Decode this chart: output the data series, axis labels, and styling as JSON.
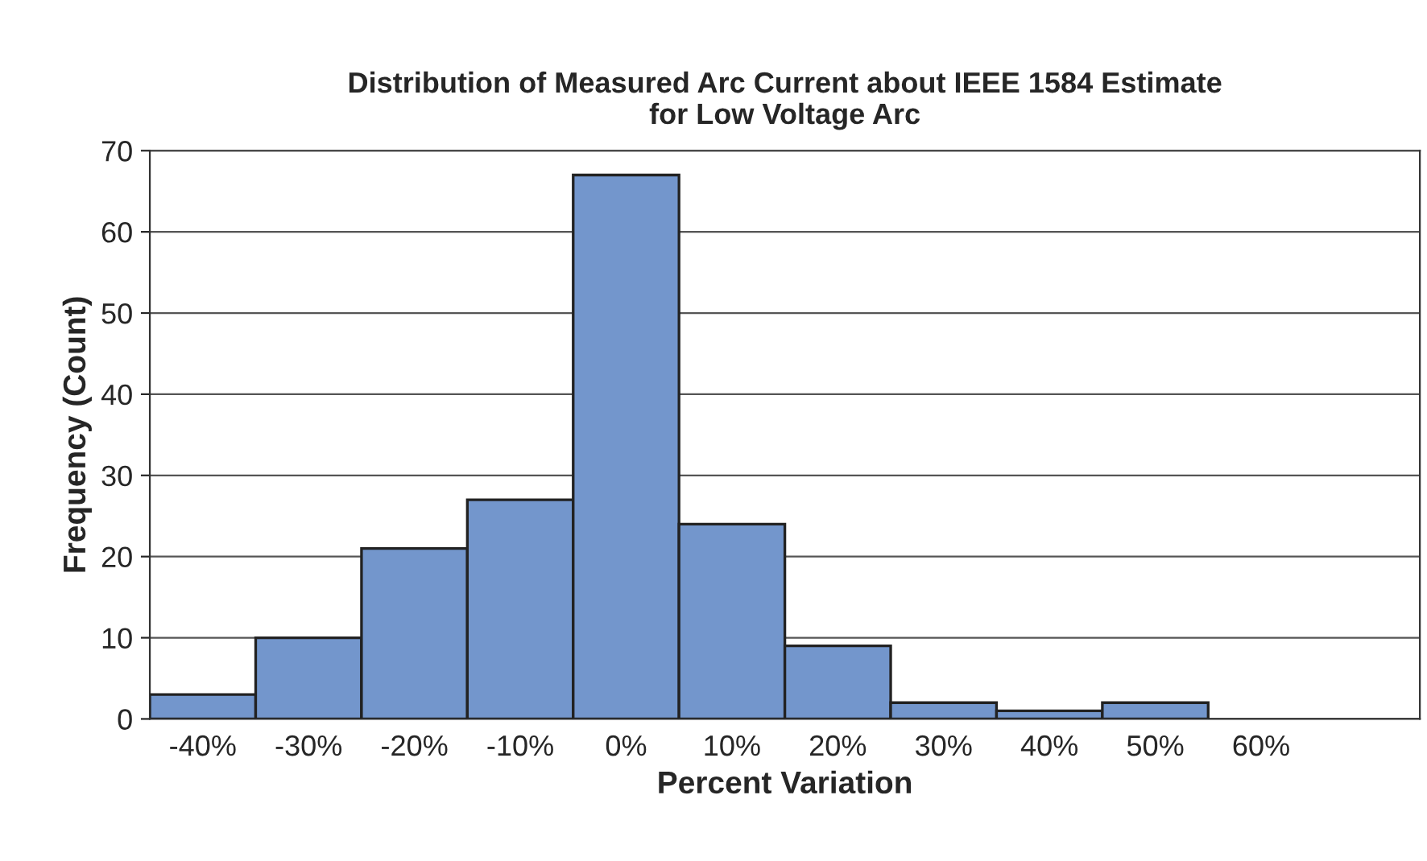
{
  "chart_data": {
    "type": "bar",
    "title": "Distribution of Measured Arc Current about IEEE 1584 Estimate\nfor Low Voltage Arc",
    "xlabel": "Percent Variation",
    "ylabel": "Frequency (Count)",
    "categories": [
      "-40%",
      "-30%",
      "-20%",
      "-10%",
      "0%",
      "10%",
      "20%",
      "30%",
      "40%",
      "50%",
      "60%",
      null
    ],
    "values": [
      3,
      10,
      21,
      27,
      67,
      24,
      9,
      2,
      1,
      2,
      null,
      null
    ],
    "color": "#7396cc",
    "ylim": [
      0,
      70
    ],
    "yticks": [
      0,
      10,
      20,
      30,
      40,
      50,
      60,
      70
    ],
    "grid": "y"
  }
}
